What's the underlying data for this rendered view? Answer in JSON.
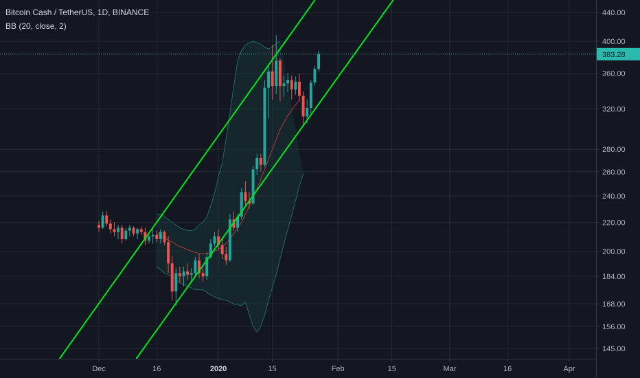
{
  "legend": {
    "symbol_line": "Bitcoin Cash / TetherUS, 1D, BINANCE",
    "indicator_line": "BB (20, close, 2)"
  },
  "chart_data": {
    "type": "candlestick",
    "title": "Bitcoin Cash / TetherUS, 1D, BINANCE",
    "indicator": "BB (20, close, 2)",
    "y_scale": "log",
    "ylim": [
      141,
      462
    ],
    "y_ticks": [
      145,
      156,
      168,
      184,
      200,
      220,
      240,
      260,
      280,
      320,
      360,
      400,
      440
    ],
    "y_tick_labels": [
      "145.00",
      "156.00",
      "168.00",
      "184.00",
      "200.00",
      "220.00",
      "240.00",
      "260.00",
      "280.00",
      "320.00",
      "360.00",
      "400.00",
      "440.00"
    ],
    "x_start_date": "2019-11-21",
    "x_range_days": [
      0,
      140
    ],
    "x_ticks": [
      {
        "label": "Dec",
        "day": 10,
        "bold": false
      },
      {
        "label": "16",
        "day": 25,
        "bold": false
      },
      {
        "label": "2020",
        "day": 41,
        "bold": true
      },
      {
        "label": "15",
        "day": 55,
        "bold": false
      },
      {
        "label": "Feb",
        "day": 72,
        "bold": false
      },
      {
        "label": "15",
        "day": 86,
        "bold": false
      },
      {
        "label": "Mar",
        "day": 101,
        "bold": false
      },
      {
        "label": "16",
        "day": 116,
        "bold": false
      },
      {
        "label": "Apr",
        "day": 132,
        "bold": false
      }
    ],
    "last_price": 383.28,
    "last_price_label": "383.28",
    "candles_start": "2019-12-01",
    "candles": [
      [
        218,
        221,
        213,
        216
      ],
      [
        216,
        228,
        215,
        225
      ],
      [
        225,
        228,
        217,
        219
      ],
      [
        219,
        222,
        212,
        215
      ],
      [
        215,
        220,
        210,
        213
      ],
      [
        213,
        218,
        208,
        216
      ],
      [
        216,
        218,
        205,
        208
      ],
      [
        208,
        216,
        207,
        214
      ],
      [
        214,
        218,
        210,
        216
      ],
      [
        216,
        217,
        210,
        212
      ],
      [
        212,
        216,
        208,
        215
      ],
      [
        215,
        217,
        211,
        213
      ],
      [
        213,
        216,
        204,
        207
      ],
      [
        207,
        212,
        205,
        210
      ],
      [
        210,
        215,
        205,
        211
      ],
      [
        211,
        214,
        206,
        208
      ],
      [
        208,
        215,
        205,
        213
      ],
      [
        213,
        214,
        204,
        206
      ],
      [
        206,
        210,
        186,
        192
      ],
      [
        192,
        197,
        170,
        175
      ],
      [
        175,
        189,
        167,
        186
      ],
      [
        186,
        190,
        180,
        184
      ],
      [
        184,
        190,
        178,
        187
      ],
      [
        187,
        192,
        182,
        185
      ],
      [
        185,
        189,
        180,
        186
      ],
      [
        186,
        196,
        184,
        194
      ],
      [
        194,
        198,
        183,
        186
      ],
      [
        186,
        189,
        181,
        184
      ],
      [
        184,
        199,
        182,
        196
      ],
      [
        196,
        208,
        195,
        205
      ],
      [
        205,
        213,
        203,
        210
      ],
      [
        210,
        215,
        201,
        204
      ],
      [
        204,
        209,
        195,
        198
      ],
      [
        198,
        203,
        191,
        194
      ],
      [
        194,
        226,
        193,
        222
      ],
      [
        222,
        228,
        214,
        216
      ],
      [
        216,
        226,
        213,
        224
      ],
      [
        224,
        246,
        222,
        243
      ],
      [
        243,
        252,
        232,
        236
      ],
      [
        236,
        243,
        230,
        234
      ],
      [
        234,
        265,
        233,
        262
      ],
      [
        262,
        276,
        257,
        272
      ],
      [
        272,
        276,
        260,
        266
      ],
      [
        266,
        352,
        264,
        343
      ],
      [
        343,
        370,
        310,
        362
      ],
      [
        362,
        395,
        330,
        345
      ],
      [
        345,
        408,
        336,
        375
      ],
      [
        375,
        378,
        328,
        345
      ],
      [
        345,
        357,
        333,
        348
      ],
      [
        348,
        360,
        338,
        352
      ],
      [
        352,
        357,
        330,
        341
      ],
      [
        341,
        356,
        335,
        350
      ],
      [
        350,
        359,
        328,
        334
      ],
      [
        334,
        339,
        302,
        312
      ],
      [
        312,
        330,
        305,
        321
      ],
      [
        321,
        352,
        315,
        349
      ],
      [
        349,
        369,
        345,
        365
      ],
      [
        365,
        388,
        362,
        383.28
      ]
    ],
    "bb_upper": [
      [
        25,
        226
      ],
      [
        26,
        226
      ],
      [
        27,
        224
      ],
      [
        28,
        222
      ],
      [
        29,
        220
      ],
      [
        30,
        218
      ],
      [
        31,
        216
      ],
      [
        32,
        215
      ],
      [
        33,
        214
      ],
      [
        34,
        214
      ],
      [
        35,
        215
      ],
      [
        36,
        218
      ],
      [
        37,
        220
      ],
      [
        38,
        224
      ],
      [
        39,
        232
      ],
      [
        40,
        242
      ],
      [
        41,
        256
      ],
      [
        42,
        268
      ],
      [
        43,
        290
      ],
      [
        44,
        315
      ],
      [
        45,
        345
      ],
      [
        46,
        375
      ],
      [
        47,
        388
      ],
      [
        48,
        395
      ],
      [
        49,
        398
      ],
      [
        50,
        400
      ],
      [
        51,
        398
      ],
      [
        52,
        396
      ],
      [
        53,
        392
      ],
      [
        54,
        390
      ],
      [
        55,
        393
      ],
      [
        56,
        397
      ],
      [
        57,
        400
      ]
    ],
    "bb_basis": [
      [
        25,
        212
      ],
      [
        27,
        209
      ],
      [
        29,
        206
      ],
      [
        31,
        203
      ],
      [
        33,
        201
      ],
      [
        35,
        199
      ],
      [
        37,
        198
      ],
      [
        39,
        199
      ],
      [
        41,
        201
      ],
      [
        43,
        205
      ],
      [
        45,
        212
      ],
      [
        47,
        220
      ],
      [
        49,
        232
      ],
      [
        51,
        246
      ],
      [
        53,
        262
      ],
      [
        55,
        280
      ],
      [
        57,
        299
      ],
      [
        59,
        313
      ],
      [
        61,
        324
      ],
      [
        62,
        329
      ]
    ],
    "bb_lower": [
      [
        25,
        190
      ],
      [
        27,
        186
      ],
      [
        29,
        184
      ],
      [
        31,
        180
      ],
      [
        33,
        178
      ],
      [
        35,
        176
      ],
      [
        37,
        176
      ],
      [
        39,
        173
      ],
      [
        41,
        171
      ],
      [
        43,
        170
      ],
      [
        45,
        168
      ],
      [
        47,
        167
      ],
      [
        48,
        169
      ],
      [
        49,
        162
      ],
      [
        50,
        156
      ],
      [
        51,
        153
      ],
      [
        52,
        156
      ],
      [
        53,
        162
      ],
      [
        54,
        170
      ],
      [
        56,
        185
      ],
      [
        58,
        205
      ],
      [
        60,
        225
      ],
      [
        62,
        248
      ],
      [
        63,
        258
      ]
    ],
    "channel_upper_line": {
      "from": {
        "day": 25,
        "price": 220
      },
      "to": {
        "day": 57,
        "price": 390
      }
    },
    "channel_lower_line": {
      "from": {
        "day": 35,
        "price": 184
      },
      "to": {
        "day": 67,
        "price": 325
      }
    },
    "colors": {
      "background": "#131722",
      "grid": "#262a33",
      "up": "#26a69a",
      "down": "#ef5350",
      "channel": "#00e61a",
      "bb_band": "#1f6b66",
      "bb_basis": "#b03a3a",
      "bb_fill": "#1b3a3c",
      "price_line": "#2bb8ad",
      "axis_text": "#b2b5be"
    },
    "grid": true
  }
}
